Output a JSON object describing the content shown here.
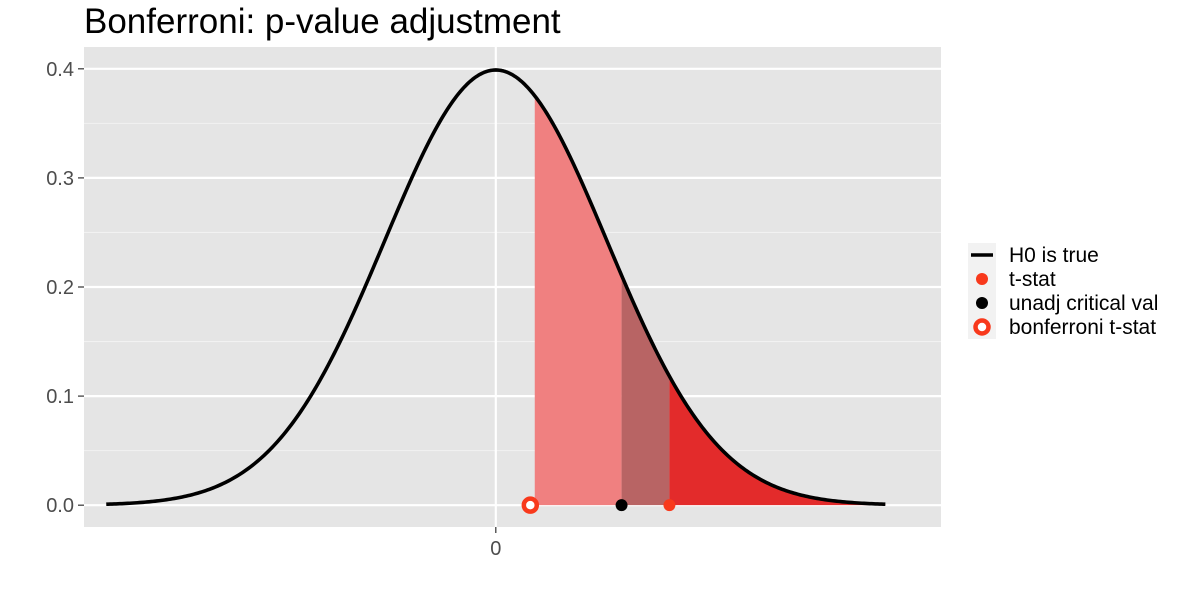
{
  "chart_data": {
    "type": "area",
    "title": "Bonferroni: p-value adjustment",
    "xlabel": "",
    "ylabel": "",
    "xlim": [
      -3.7,
      4.0
    ],
    "ylim": [
      -0.02,
      0.42
    ],
    "x_ticks": [
      0
    ],
    "x_tick_labels": [
      "0"
    ],
    "y_ticks": [
      0.0,
      0.1,
      0.2,
      0.3,
      0.4
    ],
    "y_tick_labels": [
      "0.0",
      "0.1",
      "0.2",
      "0.3",
      "0.4"
    ],
    "grid": true,
    "panel_background": "#e5e5e5",
    "series": [
      {
        "name": "H0 is true",
        "kind": "density_curve",
        "distribution": "standard normal",
        "x_range": [
          -3.5,
          3.5
        ],
        "color": "#000000"
      }
    ],
    "shaded_regions": [
      {
        "from": 0.35,
        "to": 1.13,
        "color": "#f08080"
      },
      {
        "from": 1.13,
        "to": 1.56,
        "color": "#b86464"
      },
      {
        "from": 1.56,
        "to": 3.5,
        "color": "#e32b2b"
      }
    ],
    "points": [
      {
        "name": "t-stat",
        "x": 1.56,
        "y": 0.0,
        "style": "filled",
        "color": "#f8391c"
      },
      {
        "name": "unadj critical val",
        "x": 1.13,
        "y": 0.0,
        "style": "filled",
        "color": "#000000"
      },
      {
        "name": "bonferroni t-stat",
        "x": 0.31,
        "y": 0.0,
        "style": "ring",
        "color": "#f8391c"
      }
    ],
    "legend": {
      "placement": "right",
      "entries": [
        {
          "label": "H0 is true",
          "symbol": "line",
          "color": "#000000"
        },
        {
          "label": "t-stat",
          "symbol": "dot",
          "color": "#f8391c"
        },
        {
          "label": "unadj critical val",
          "symbol": "dot",
          "color": "#000000"
        },
        {
          "label": "bonferroni t-stat",
          "symbol": "ring",
          "color": "#f8391c"
        }
      ]
    }
  }
}
